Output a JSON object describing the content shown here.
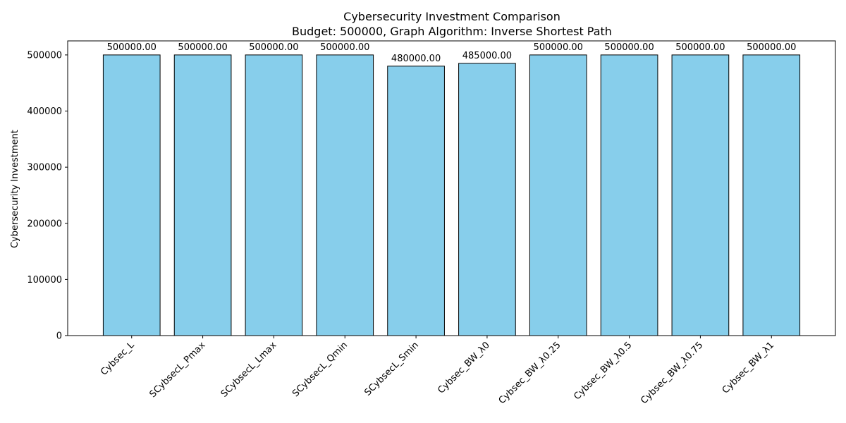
{
  "chart_data": {
    "type": "bar",
    "title": "Cybersecurity Investment Comparison",
    "subtitle": "Budget: 500000, Graph Algorithm: Inverse Shortest Path",
    "xlabel": "",
    "ylabel": "Cybersecurity Investment",
    "categories": [
      "Cybsec_L",
      "SCybsecL_Pmax",
      "SCybsecL_Lmax",
      "SCybsecL_Qmin",
      "SCybsecL_Smin",
      "Cybsec_BW_λ0",
      "Cybsec_BW_λ0.25",
      "Cybsec_BW_λ0.5",
      "Cybsec_BW_λ0.75",
      "Cybsec_BW_λ1"
    ],
    "values": [
      500000,
      500000,
      500000,
      500000,
      480000,
      485000,
      500000,
      500000,
      500000,
      500000
    ],
    "data_labels": [
      "500000.00",
      "500000.00",
      "500000.00",
      "500000.00",
      "480000.00",
      "485000.00",
      "500000.00",
      "500000.00",
      "500000.00",
      "500000.00"
    ],
    "ylim": [
      0,
      525000
    ],
    "yticks": [
      0,
      100000,
      200000,
      300000,
      400000,
      500000
    ],
    "ytick_labels": [
      "0",
      "100000",
      "200000",
      "300000",
      "400000",
      "500000"
    ],
    "grid": false,
    "bar_color": "#87ceeb",
    "bar_edge_color": "#000000"
  }
}
